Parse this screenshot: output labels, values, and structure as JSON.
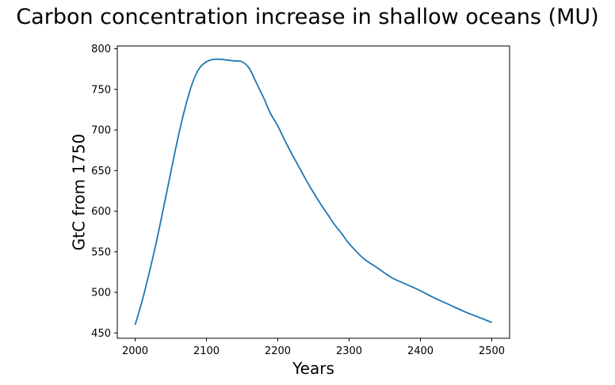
{
  "chart_data": {
    "type": "line",
    "title": "Carbon concentration increase in shallow oceans (MU)",
    "xlabel": "Years",
    "ylabel": "GtC from 1750",
    "xlim": [
      1975,
      2525
    ],
    "ylim": [
      443.5,
      803.5
    ],
    "xticks": [
      2000,
      2100,
      2200,
      2300,
      2400,
      2500
    ],
    "yticks": [
      450,
      500,
      550,
      600,
      650,
      700,
      750,
      800
    ],
    "grid": false,
    "legend": "none",
    "series": [
      {
        "color": "#1f77b4",
        "x": [
          2000,
          2010,
          2020,
          2030,
          2040,
          2050,
          2060,
          2070,
          2080,
          2090,
          2100,
          2110,
          2120,
          2130,
          2140,
          2150,
          2160,
          2170,
          2180,
          2190,
          2200,
          2210,
          2220,
          2230,
          2240,
          2250,
          2260,
          2270,
          2280,
          2290,
          2300,
          2320,
          2340,
          2360,
          2380,
          2400,
          2420,
          2440,
          2460,
          2480,
          2500
        ],
        "y": [
          460,
          490,
          525,
          563,
          605,
          648,
          690,
          727,
          757,
          776,
          784,
          787,
          787,
          786,
          785,
          784,
          776,
          758,
          740,
          720,
          705,
          687,
          670,
          654,
          638,
          623,
          609,
          596,
          583,
          572,
          560,
          542,
          530,
          518,
          510,
          502,
          493,
          485,
          477,
          470,
          463
        ]
      }
    ]
  }
}
